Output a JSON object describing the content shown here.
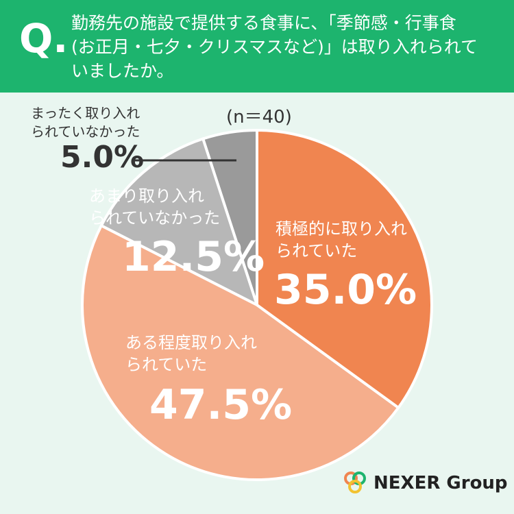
{
  "chart_data": {
    "type": "pie",
    "title": "勤務先の施設で提供する食事に、「季節感・行事食\n(お正月・七夕・クリスマスなど)」は取り入れられて\nいましたか。",
    "title_marker": "Q.",
    "subtitle": "(n＝40)",
    "categories": [
      "積極的に取り入れ\nられていた",
      "ある程度取り入れ\nられていた",
      "あまり取り入れ\nられていなかった",
      "まったく取り入れ\nられていなかった"
    ],
    "values": [
      35.0,
      47.5,
      12.5,
      5.0
    ],
    "value_labels": [
      "35.0%",
      "47.5%",
      "12.5%",
      "5.0%"
    ],
    "colors": [
      "#f08550",
      "#f5ae8c",
      "#b7b7b7",
      "#9a9a9a"
    ],
    "logo": "NEXER Group"
  }
}
